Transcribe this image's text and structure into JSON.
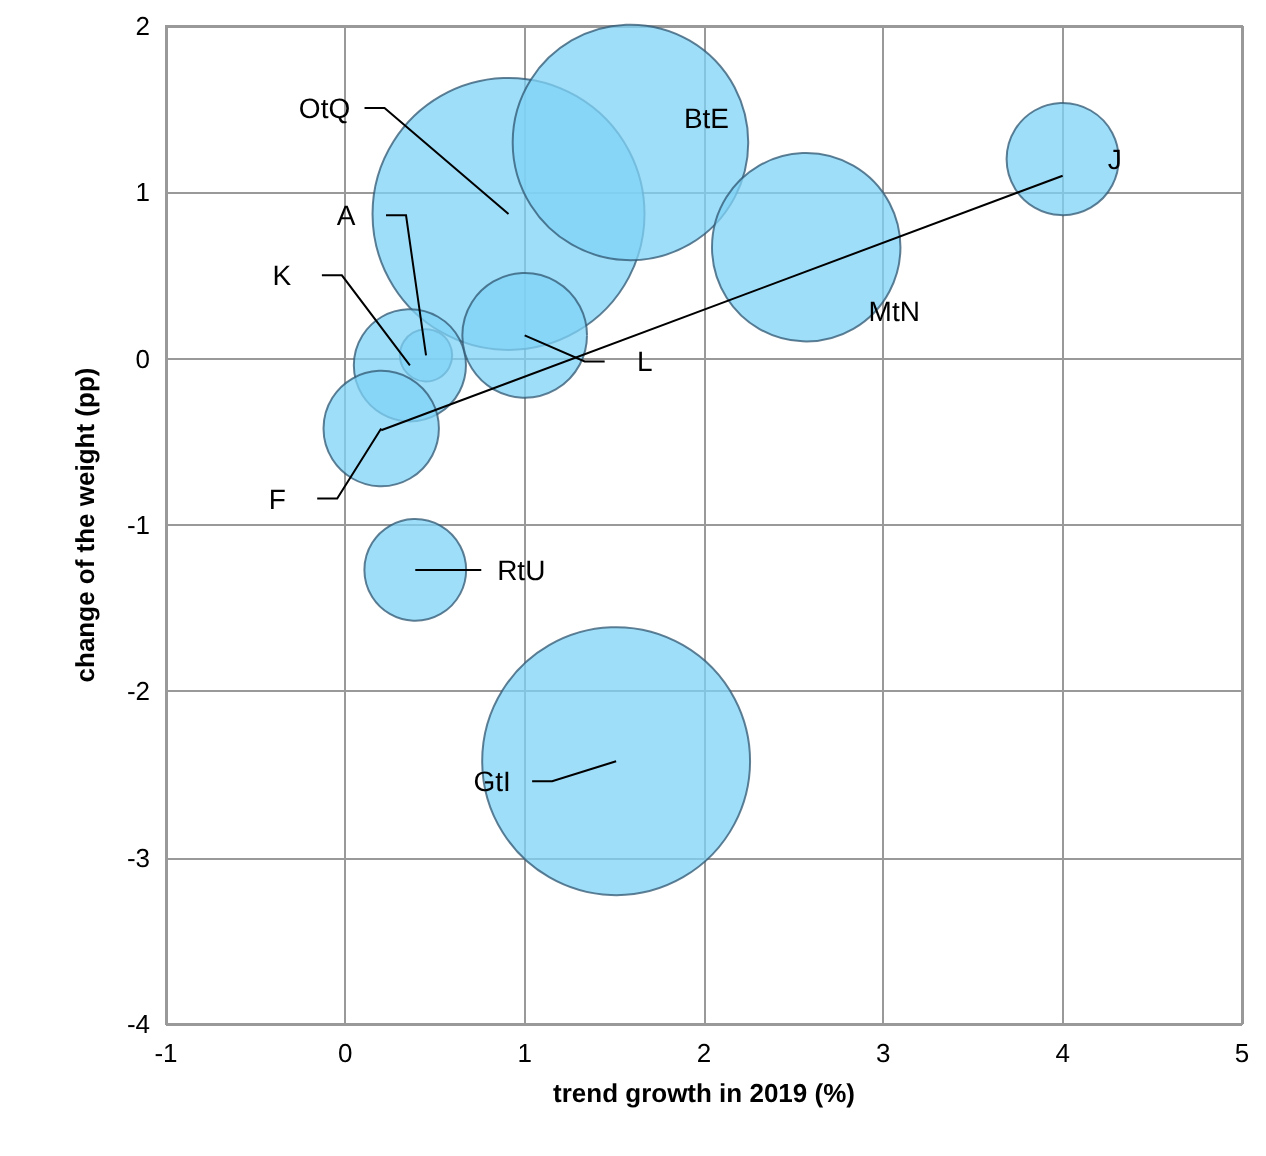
{
  "chart_data": {
    "type": "bubble",
    "xlabel": "trend growth in 2019 (%)",
    "ylabel": "change of the weight (pp)",
    "x": [
      0.91,
      1.59,
      2.57,
      4.0,
      0.45,
      0.36,
      1.0,
      0.2,
      0.39,
      1.51
    ],
    "values": [
      0.87,
      1.3,
      0.67,
      1.2,
      0.02,
      -0.04,
      0.14,
      -0.42,
      -1.27,
      -2.42
    ],
    "sizes": [
      1,
      0.75,
      0.48,
      0.17,
      0.037,
      0.17,
      0.21,
      0.18,
      0.14,
      0.97
    ],
    "color": "#7fd3f7",
    "series": [
      {
        "type": "line",
        "x": [
          0.2,
          4.0
        ],
        "values": [
          -0.43,
          1.1
        ],
        "color": "#000000"
      }
    ],
    "annotations": [
      {
        "text": "OtQ",
        "x": 0.91,
        "y": 0.87
      },
      {
        "text": "BtE",
        "x": 1.59,
        "y": 1.3
      },
      {
        "text": "MtN",
        "x": 2.57,
        "y": 0.67
      },
      {
        "text": "J",
        "x": 4.0,
        "y": 1.2
      },
      {
        "text": "A",
        "x": 0.45,
        "y": 0.02
      },
      {
        "text": "K",
        "x": 0.36,
        "y": -0.04
      },
      {
        "text": "L",
        "x": 1.0,
        "y": 0.14
      },
      {
        "text": "F",
        "x": 0.2,
        "y": -0.42
      },
      {
        "text": "RtU",
        "x": 0.39,
        "y": -1.27
      },
      {
        "text": "GtI",
        "x": 1.51,
        "y": -2.42
      }
    ],
    "xlim": [
      -1,
      5
    ],
    "xticks": [
      -1,
      0,
      1,
      2,
      3,
      4,
      5
    ],
    "ylim": [
      -4,
      2
    ],
    "yticks": [
      -4,
      -3,
      -2,
      -1,
      0,
      1,
      2
    ],
    "grid": true
  }
}
